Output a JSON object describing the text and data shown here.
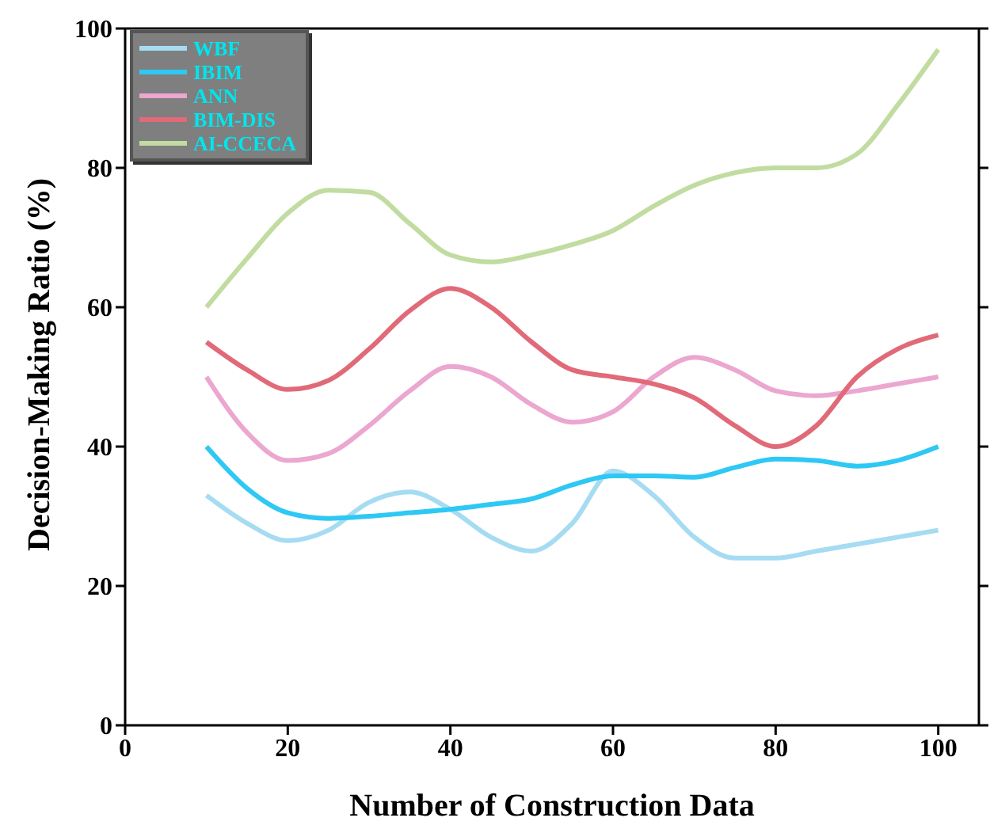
{
  "chart_data": {
    "type": "line",
    "xlabel": "Number of Construction Data",
    "ylabel": "Decision-Making Ratio (%)",
    "x": [
      10,
      15,
      20,
      25,
      30,
      35,
      40,
      45,
      50,
      55,
      60,
      65,
      70,
      75,
      80,
      85,
      90,
      95,
      100
    ],
    "series": [
      {
        "name": "WBF",
        "color": "#a6dcf2",
        "values": [
          33,
          29,
          26.5,
          28,
          32,
          33.5,
          31,
          27,
          25,
          29,
          36.5,
          33,
          27,
          24,
          24,
          25,
          26,
          27,
          28
        ]
      },
      {
        "name": "IBIM",
        "color": "#2ec8f5",
        "values": [
          40,
          34,
          30.5,
          29.7,
          30,
          30.5,
          31,
          31.7,
          32.5,
          34.5,
          35.8,
          35.8,
          35.6,
          37,
          38.2,
          38,
          37.2,
          38,
          40
        ]
      },
      {
        "name": "ANN",
        "color": "#eba7cf",
        "values": [
          50,
          42,
          38,
          39,
          43,
          48,
          51.5,
          50,
          46,
          43.5,
          45,
          50,
          52.8,
          51,
          48,
          47.3,
          48,
          49,
          50
        ]
      },
      {
        "name": "BIM-DIS",
        "color": "#e16a78",
        "values": [
          55,
          51,
          48.2,
          49.5,
          54,
          59.5,
          62.7,
          60,
          55,
          51,
          50,
          49,
          47,
          43,
          40,
          43,
          50,
          54,
          56
        ]
      },
      {
        "name": "AI-CCECA",
        "color": "#c1dca0",
        "values": [
          60,
          67,
          73.5,
          76.8,
          76.5,
          72,
          67.5,
          66.5,
          67.5,
          69,
          71,
          74.5,
          77.5,
          79.3,
          80,
          80,
          82,
          89,
          97
        ]
      }
    ],
    "xlim": [
      0,
      105
    ],
    "ylim": [
      0,
      100
    ],
    "xticks": [
      0,
      20,
      40,
      60,
      80,
      100
    ],
    "yticks": [
      0,
      20,
      40,
      60,
      80,
      100
    ],
    "grid": false,
    "legend": "top left",
    "marker": "none",
    "line_style": "solid"
  }
}
